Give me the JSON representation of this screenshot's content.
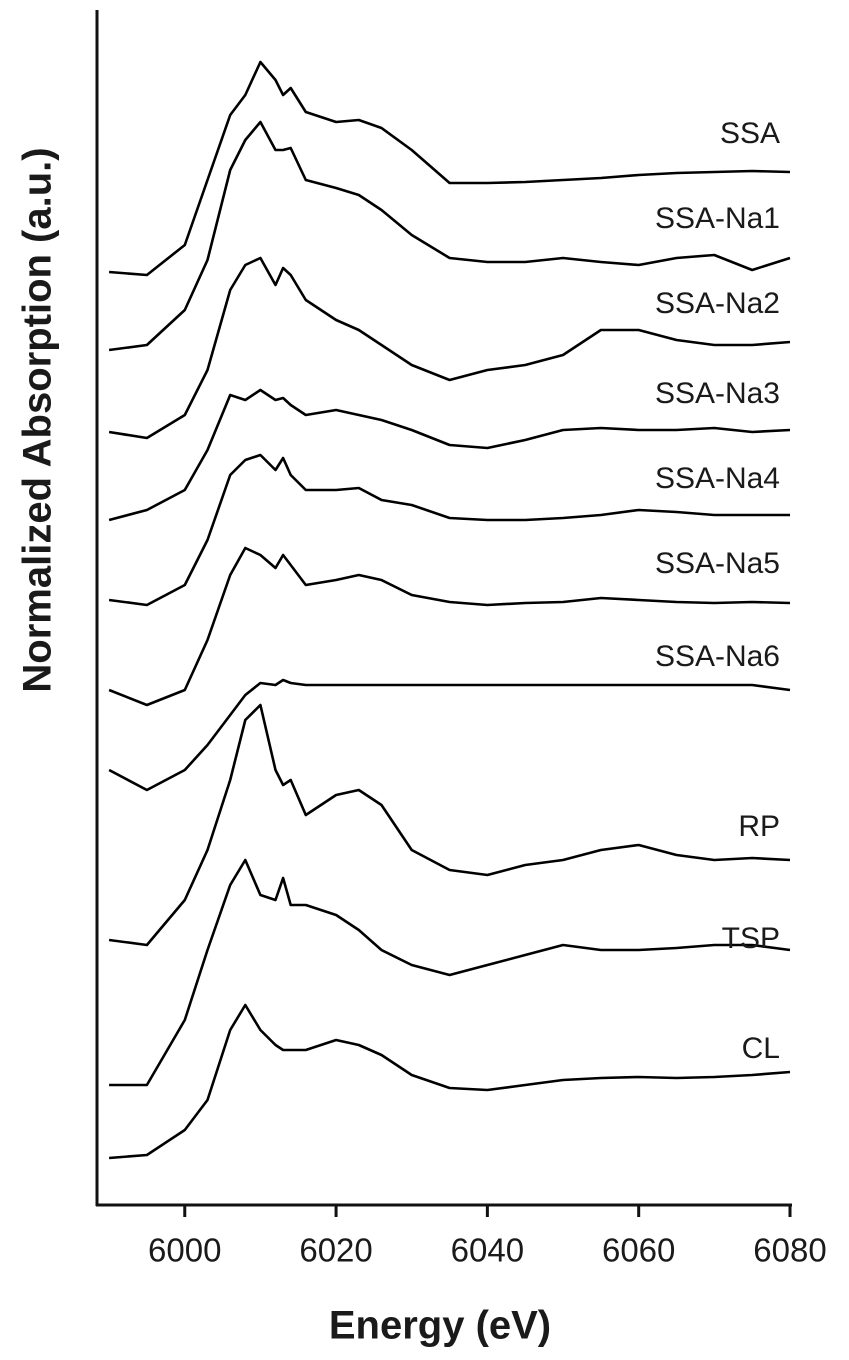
{
  "chart_data": {
    "type": "line",
    "x_label": "Energy (eV)",
    "y_label": "Normalized Absorption (a.u.)",
    "x": [
      5990,
      5995,
      6000,
      6003,
      6006,
      6008,
      6010,
      6012,
      6013,
      6014,
      6016,
      6020,
      6023,
      6026,
      6030,
      6035,
      6040,
      6045,
      6050,
      6055,
      6060,
      6065,
      6070,
      6075,
      6080
    ],
    "xlim": [
      5988.4,
      6080
    ],
    "xticks": [
      6000,
      6020,
      6040,
      6060,
      6080
    ],
    "ylim": [
      0,
      11.95
    ],
    "series": [
      {
        "name": "SSA",
        "color": "#000000",
        "values": [
          9.33,
          9.3,
          9.6,
          10.25,
          10.9,
          11.1,
          11.43,
          11.25,
          11.1,
          11.17,
          10.93,
          10.83,
          10.85,
          10.77,
          10.55,
          10.22,
          10.22,
          10.23,
          10.25,
          10.27,
          10.3,
          10.32,
          10.33,
          10.34,
          10.33
        ]
      },
      {
        "name": "SSA-Na1",
        "color": "#000000",
        "values": [
          8.55,
          8.6,
          8.95,
          9.45,
          10.35,
          10.65,
          10.83,
          10.55,
          10.55,
          10.57,
          10.25,
          10.17,
          10.1,
          9.95,
          9.7,
          9.47,
          9.43,
          9.43,
          9.47,
          9.43,
          9.4,
          9.47,
          9.5,
          9.35,
          9.47
        ]
      },
      {
        "name": "SSA-Na2",
        "color": "#000000",
        "values": [
          7.73,
          7.67,
          7.9,
          8.35,
          9.15,
          9.4,
          9.47,
          9.2,
          9.37,
          9.3,
          9.05,
          8.85,
          8.75,
          8.6,
          8.4,
          8.25,
          8.35,
          8.4,
          8.5,
          8.75,
          8.75,
          8.65,
          8.6,
          8.6,
          8.63
        ]
      },
      {
        "name": "SSA-Na3",
        "color": "#000000",
        "values": [
          6.85,
          6.95,
          7.15,
          7.55,
          8.1,
          8.05,
          8.15,
          8.05,
          8.07,
          8.0,
          7.9,
          7.95,
          7.9,
          7.85,
          7.75,
          7.6,
          7.57,
          7.65,
          7.75,
          7.77,
          7.75,
          7.75,
          7.77,
          7.73,
          7.75
        ]
      },
      {
        "name": "SSA-Na4",
        "color": "#000000",
        "values": [
          6.05,
          6.0,
          6.2,
          6.65,
          7.3,
          7.45,
          7.5,
          7.35,
          7.47,
          7.3,
          7.15,
          7.15,
          7.17,
          7.05,
          7.0,
          6.87,
          6.85,
          6.85,
          6.87,
          6.9,
          6.95,
          6.93,
          6.9,
          6.9,
          6.9
        ]
      },
      {
        "name": "SSA-Na5",
        "color": "#000000",
        "values": [
          5.15,
          5.0,
          5.15,
          5.65,
          6.3,
          6.57,
          6.5,
          6.37,
          6.5,
          6.4,
          6.2,
          6.25,
          6.3,
          6.25,
          6.1,
          6.03,
          6.0,
          6.02,
          6.03,
          6.07,
          6.05,
          6.03,
          6.02,
          6.03,
          6.02
        ]
      },
      {
        "name": "SSA-Na6",
        "color": "#000000",
        "values": [
          4.35,
          4.15,
          4.35,
          4.6,
          4.9,
          5.1,
          5.22,
          5.2,
          5.25,
          5.22,
          5.2,
          5.2,
          5.2,
          5.2,
          5.2,
          5.2,
          5.2,
          5.2,
          5.2,
          5.2,
          5.2,
          5.2,
          5.2,
          5.2,
          5.15
        ]
      },
      {
        "name": "RP",
        "color": "#000000",
        "values": [
          2.65,
          2.6,
          3.05,
          3.55,
          4.25,
          4.85,
          5.0,
          4.35,
          4.2,
          4.25,
          3.9,
          4.1,
          4.15,
          4.0,
          3.55,
          3.35,
          3.3,
          3.4,
          3.45,
          3.55,
          3.6,
          3.5,
          3.45,
          3.47,
          3.45
        ]
      },
      {
        "name": "TSP",
        "color": "#000000",
        "values": [
          1.2,
          1.2,
          1.85,
          2.55,
          3.2,
          3.45,
          3.1,
          3.05,
          3.27,
          3.0,
          3.0,
          2.9,
          2.75,
          2.55,
          2.4,
          2.3,
          2.4,
          2.5,
          2.6,
          2.55,
          2.55,
          2.57,
          2.6,
          2.6,
          2.55
        ]
      },
      {
        "name": "CL",
        "color": "#000000",
        "values": [
          0.47,
          0.5,
          0.75,
          1.05,
          1.75,
          2.0,
          1.75,
          1.6,
          1.55,
          1.55,
          1.55,
          1.65,
          1.6,
          1.5,
          1.3,
          1.17,
          1.15,
          1.2,
          1.25,
          1.27,
          1.28,
          1.27,
          1.28,
          1.3,
          1.33
        ]
      }
    ]
  }
}
